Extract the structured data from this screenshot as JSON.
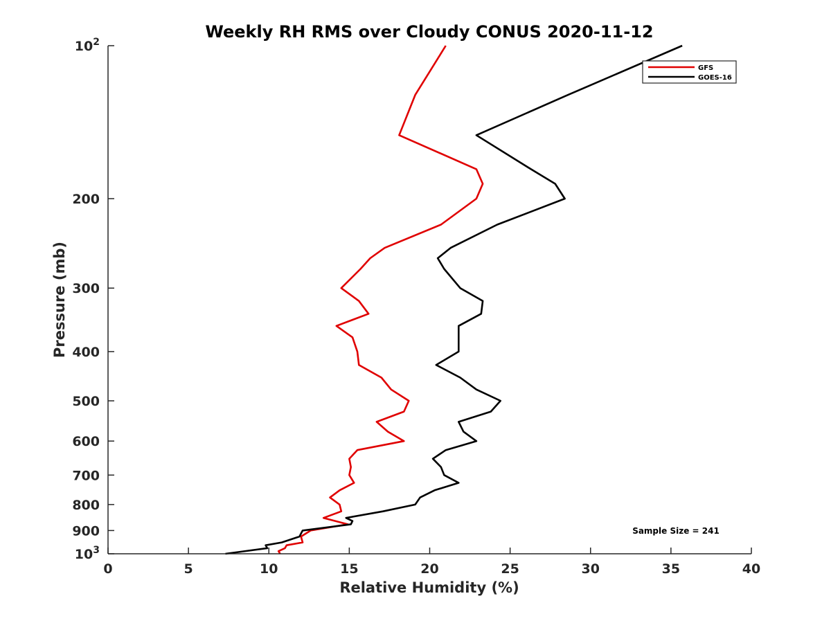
{
  "chart_data": {
    "type": "line",
    "title": "Weekly RH RMS over Cloudy CONUS 2020-11-12",
    "xlabel": "Relative Humidity (%)",
    "ylabel": "Pressure (mb)",
    "xlim": [
      0,
      40
    ],
    "ylim": [
      100,
      1000
    ],
    "y_scale": "log",
    "y_reversed": true,
    "x_ticks": [
      "0",
      "5",
      "10",
      "15",
      "20",
      "25",
      "30",
      "35",
      "40"
    ],
    "y_ticks": [
      {
        "value": 100,
        "base": "10",
        "exp": "2"
      },
      {
        "value": 200,
        "label": "200"
      },
      {
        "value": 300,
        "label": "300"
      },
      {
        "value": 400,
        "label": "400"
      },
      {
        "value": 500,
        "label": "500"
      },
      {
        "value": 600,
        "label": "600"
      },
      {
        "value": 700,
        "label": "700"
      },
      {
        "value": 800,
        "label": "800"
      },
      {
        "value": 900,
        "label": "900"
      },
      {
        "value": 1000,
        "base": "10",
        "exp": "3"
      }
    ],
    "legend_position": "top-right",
    "annotation": "Sample Size = 241",
    "series": [
      {
        "name": "GFS",
        "color": "#e00000",
        "points": [
          [
            21.0,
            100
          ],
          [
            19.1,
            125
          ],
          [
            18.1,
            150
          ],
          [
            22.9,
            175
          ],
          [
            23.3,
            187
          ],
          [
            22.9,
            200
          ],
          [
            20.7,
            225
          ],
          [
            17.2,
            250
          ],
          [
            16.3,
            262
          ],
          [
            15.7,
            275
          ],
          [
            14.5,
            300
          ],
          [
            15.6,
            318
          ],
          [
            16.2,
            337
          ],
          [
            14.2,
            356
          ],
          [
            15.2,
            375
          ],
          [
            15.5,
            400
          ],
          [
            15.6,
            425
          ],
          [
            17.0,
            450
          ],
          [
            17.6,
            475
          ],
          [
            18.7,
            500
          ],
          [
            18.4,
            525
          ],
          [
            16.7,
            550
          ],
          [
            17.4,
            575
          ],
          [
            18.4,
            600
          ],
          [
            15.5,
            625
          ],
          [
            15.0,
            650
          ],
          [
            15.1,
            675
          ],
          [
            15.0,
            700
          ],
          [
            15.3,
            725
          ],
          [
            14.4,
            750
          ],
          [
            13.8,
            775
          ],
          [
            14.4,
            800
          ],
          [
            14.5,
            825
          ],
          [
            13.4,
            850
          ],
          [
            14.9,
            875
          ],
          [
            12.6,
            900
          ],
          [
            12.0,
            925
          ],
          [
            12.1,
            950
          ],
          [
            11.1,
            962
          ],
          [
            11.0,
            975
          ],
          [
            10.6,
            988
          ],
          [
            10.7,
            1000
          ]
        ]
      },
      {
        "name": "GOES-16",
        "color": "#000000",
        "points": [
          [
            35.7,
            100
          ],
          [
            28.6,
            125
          ],
          [
            22.9,
            150
          ],
          [
            26.3,
            175
          ],
          [
            27.8,
            187
          ],
          [
            28.4,
            200
          ],
          [
            24.2,
            225
          ],
          [
            21.3,
            250
          ],
          [
            20.5,
            262
          ],
          [
            20.9,
            275
          ],
          [
            21.9,
            300
          ],
          [
            23.3,
            318
          ],
          [
            23.2,
            337
          ],
          [
            21.8,
            356
          ],
          [
            21.8,
            375
          ],
          [
            21.8,
            400
          ],
          [
            20.4,
            425
          ],
          [
            21.9,
            450
          ],
          [
            22.9,
            475
          ],
          [
            24.4,
            500
          ],
          [
            23.8,
            525
          ],
          [
            21.8,
            550
          ],
          [
            22.1,
            575
          ],
          [
            22.9,
            600
          ],
          [
            21.0,
            625
          ],
          [
            20.2,
            650
          ],
          [
            20.7,
            675
          ],
          [
            20.9,
            700
          ],
          [
            21.8,
            725
          ],
          [
            20.3,
            750
          ],
          [
            19.4,
            775
          ],
          [
            19.1,
            800
          ],
          [
            17.1,
            825
          ],
          [
            14.8,
            850
          ],
          [
            15.2,
            862
          ],
          [
            15.1,
            875
          ],
          [
            12.1,
            900
          ],
          [
            11.9,
            925
          ],
          [
            10.8,
            950
          ],
          [
            9.8,
            962
          ],
          [
            9.9,
            975
          ],
          [
            7.3,
            1000
          ]
        ]
      }
    ]
  }
}
